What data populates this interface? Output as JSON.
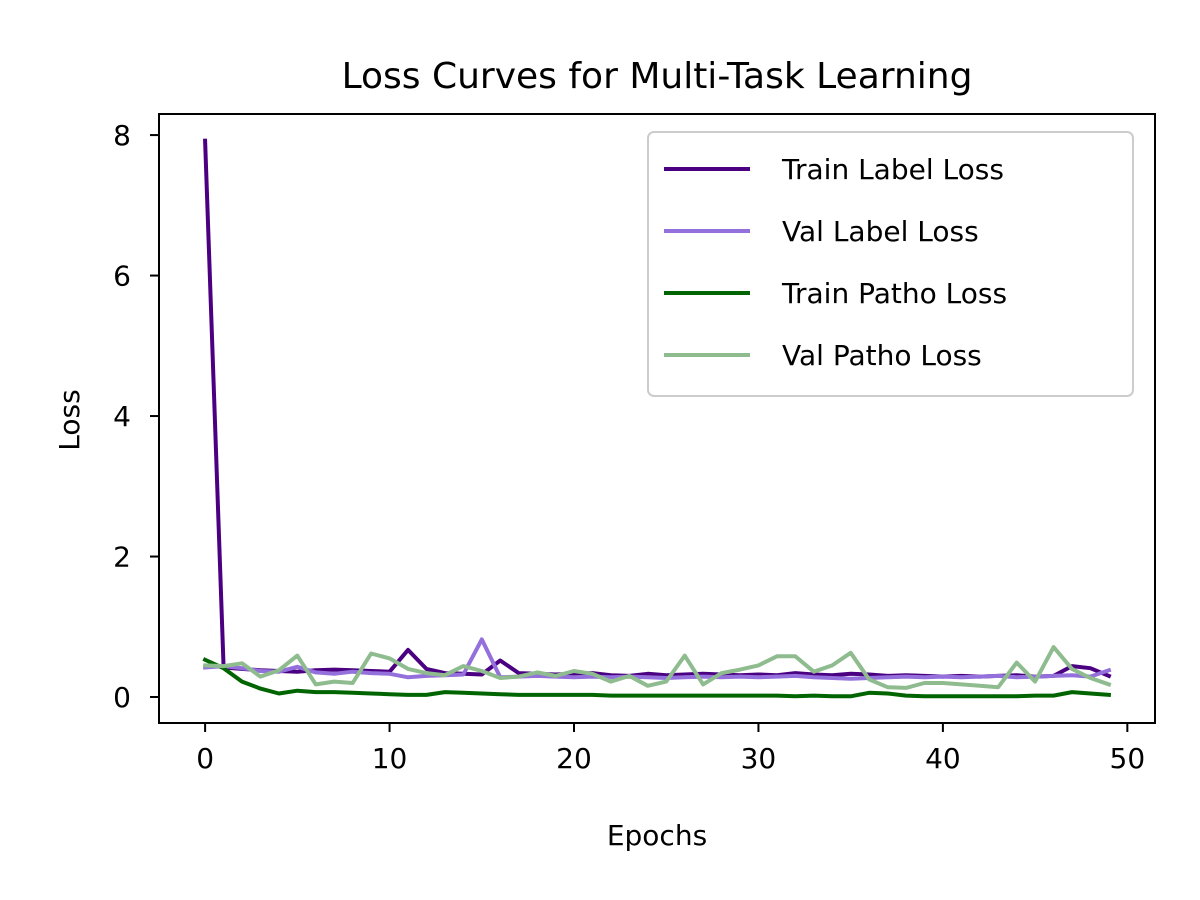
{
  "chart_data": {
    "type": "line",
    "title": "Loss Curves for Multi-Task Learning",
    "xlabel": "Epochs",
    "ylabel": "Loss",
    "xlim": [
      -2.5,
      51.5
    ],
    "ylim": [
      -0.37,
      8.3
    ],
    "xticks": [
      0,
      10,
      20,
      30,
      40,
      50
    ],
    "yticks": [
      0,
      2,
      4,
      6,
      8
    ],
    "grid": false,
    "legend_position": "upper right",
    "x": [
      0,
      1,
      2,
      3,
      4,
      5,
      6,
      7,
      8,
      9,
      10,
      11,
      12,
      13,
      14,
      15,
      16,
      17,
      18,
      19,
      20,
      21,
      22,
      23,
      24,
      25,
      26,
      27,
      28,
      29,
      30,
      31,
      32,
      33,
      34,
      35,
      36,
      37,
      38,
      39,
      40,
      41,
      42,
      43,
      44,
      45,
      46,
      47,
      48,
      49
    ],
    "series": [
      {
        "name": "Train Label Loss",
        "color": "#4b0082",
        "values": [
          7.92,
          0.42,
          0.4,
          0.38,
          0.37,
          0.36,
          0.38,
          0.39,
          0.38,
          0.37,
          0.36,
          0.67,
          0.4,
          0.34,
          0.33,
          0.32,
          0.52,
          0.34,
          0.33,
          0.32,
          0.33,
          0.34,
          0.31,
          0.3,
          0.33,
          0.31,
          0.32,
          0.33,
          0.32,
          0.31,
          0.32,
          0.31,
          0.34,
          0.32,
          0.31,
          0.33,
          0.32,
          0.3,
          0.31,
          0.3,
          0.29,
          0.3,
          0.29,
          0.3,
          0.31,
          0.29,
          0.3,
          0.44,
          0.41,
          0.3
        ]
      },
      {
        "name": "Val Label Loss",
        "color": "#9370db",
        "values": [
          0.42,
          0.44,
          0.41,
          0.37,
          0.36,
          0.43,
          0.35,
          0.33,
          0.36,
          0.34,
          0.33,
          0.28,
          0.3,
          0.31,
          0.32,
          0.82,
          0.28,
          0.29,
          0.3,
          0.29,
          0.28,
          0.29,
          0.28,
          0.29,
          0.28,
          0.27,
          0.28,
          0.29,
          0.28,
          0.29,
          0.28,
          0.29,
          0.3,
          0.28,
          0.27,
          0.26,
          0.27,
          0.28,
          0.29,
          0.28,
          0.29,
          0.28,
          0.29,
          0.3,
          0.28,
          0.29,
          0.3,
          0.31,
          0.29,
          0.38
        ]
      },
      {
        "name": "Train Patho Loss",
        "color": "#006400",
        "values": [
          0.53,
          0.41,
          0.22,
          0.12,
          0.05,
          0.09,
          0.07,
          0.07,
          0.06,
          0.05,
          0.04,
          0.03,
          0.03,
          0.07,
          0.06,
          0.05,
          0.04,
          0.03,
          0.03,
          0.03,
          0.03,
          0.03,
          0.02,
          0.02,
          0.02,
          0.02,
          0.02,
          0.02,
          0.02,
          0.02,
          0.02,
          0.02,
          0.01,
          0.02,
          0.01,
          0.01,
          0.06,
          0.05,
          0.02,
          0.01,
          0.01,
          0.01,
          0.01,
          0.01,
          0.01,
          0.02,
          0.02,
          0.07,
          0.05,
          0.03
        ]
      },
      {
        "name": "Val Patho Loss",
        "color": "#8fbc8f",
        "values": [
          0.45,
          0.44,
          0.48,
          0.29,
          0.38,
          0.59,
          0.18,
          0.22,
          0.2,
          0.62,
          0.55,
          0.4,
          0.34,
          0.31,
          0.44,
          0.37,
          0.27,
          0.29,
          0.35,
          0.3,
          0.37,
          0.33,
          0.22,
          0.3,
          0.16,
          0.22,
          0.59,
          0.18,
          0.34,
          0.39,
          0.45,
          0.58,
          0.58,
          0.36,
          0.45,
          0.63,
          0.25,
          0.14,
          0.13,
          0.2,
          0.2,
          0.18,
          0.16,
          0.14,
          0.49,
          0.22,
          0.71,
          0.4,
          0.27,
          0.18
        ]
      }
    ]
  }
}
